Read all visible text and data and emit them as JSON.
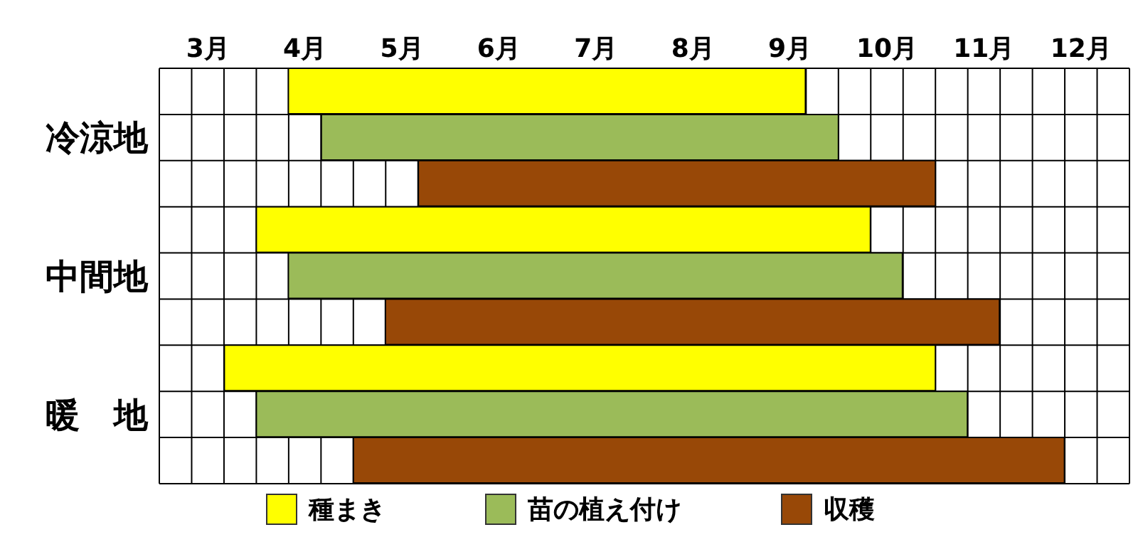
{
  "chart_data": {
    "type": "bar",
    "orientation": "horizontal",
    "categories": [
      null,
      "冷涼地",
      null,
      null,
      "中間地",
      null,
      null,
      "暖　地",
      null
    ],
    "series": [
      {
        "name": "種まき",
        "color": "#ffff00",
        "base": [
          3.83,
          null,
          null,
          3.5,
          null,
          null,
          3.17,
          null,
          null
        ],
        "values": [
          5.33,
          null,
          null,
          6.33,
          null,
          null,
          7.33,
          null,
          null
        ]
      },
      {
        "name": "苗の植え付け",
        "color": "#9bbb59",
        "base": [
          null,
          4.17,
          null,
          null,
          3.83,
          null,
          null,
          3.5,
          null
        ],
        "values": [
          null,
          5.33,
          null,
          null,
          6.33,
          null,
          null,
          7.33,
          null
        ]
      },
      {
        "name": "収穫",
        "color": "#984807",
        "base": [
          null,
          null,
          5.17,
          null,
          null,
          4.83,
          null,
          null,
          4.5
        ],
        "values": [
          null,
          null,
          5.33,
          null,
          null,
          6.33,
          null,
          null,
          7.33
        ]
      }
    ],
    "xlim": [
      2.5,
      12.5
    ],
    "xticks": [
      {
        "value": 3,
        "label": "3月"
      },
      {
        "value": 4,
        "label": "4月"
      },
      {
        "value": 5,
        "label": "5月"
      },
      {
        "value": 6,
        "label": "6月"
      },
      {
        "value": 7,
        "label": "7月"
      },
      {
        "value": 8,
        "label": "8月"
      },
      {
        "value": 9,
        "label": "9月"
      },
      {
        "value": 10,
        "label": "10月"
      },
      {
        "value": 11,
        "label": "11月"
      },
      {
        "value": 12,
        "label": "12月"
      }
    ],
    "grid": true,
    "legend": "bottom"
  }
}
